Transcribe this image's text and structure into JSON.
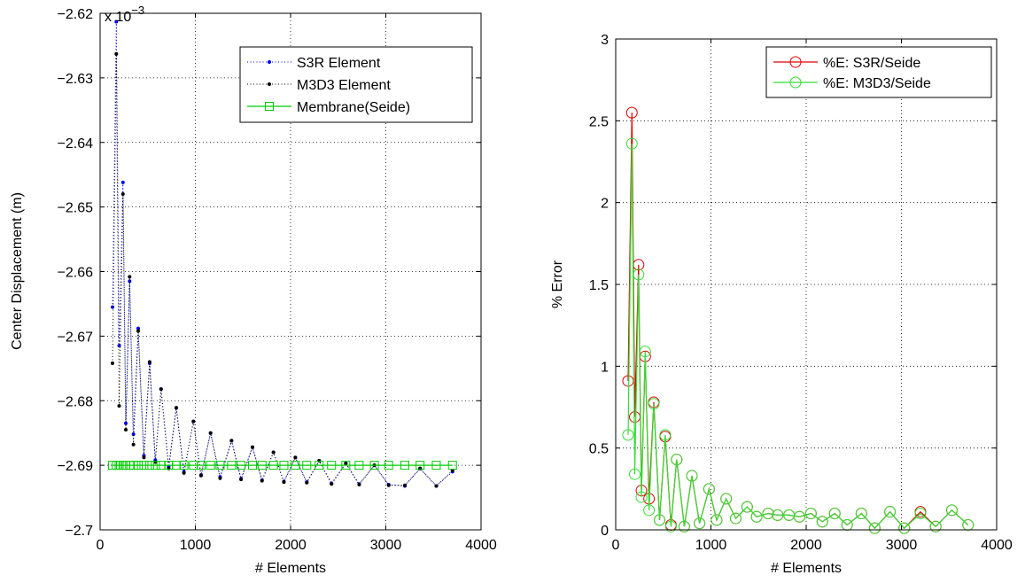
{
  "chart_data": [
    {
      "type": "line",
      "title": "",
      "xlabel": "# Elements",
      "ylabel": "Center Displacement (m)",
      "yexponent": "x 10",
      "yexponent_power": "−3",
      "xlim": [
        0,
        4000
      ],
      "ylim": [
        -2.7,
        -2.62
      ],
      "xticks": [
        0,
        1000,
        2000,
        3000,
        4000
      ],
      "xtick_labels": [
        "0",
        "1000",
        "2000",
        "3000",
        "4000"
      ],
      "yticks": [
        -2.7,
        -2.69,
        -2.68,
        -2.67,
        -2.66,
        -2.65,
        -2.64,
        -2.63,
        -2.62
      ],
      "ytick_labels": [
        "−2.7",
        "−2.69",
        "−2.68",
        "−2.67",
        "−2.66",
        "−2.65",
        "−2.64",
        "−2.63",
        "−2.62"
      ],
      "grid": true,
      "legend_position": "top-right",
      "series": [
        {
          "name": "S3R Element",
          "color": "#0000ff",
          "style": "dotted-point",
          "x": [
            130,
            170,
            200,
            240,
            270,
            310,
            350,
            400,
            460,
            520,
            580,
            640,
            720,
            800,
            880,
            980,
            1060,
            1160,
            1260,
            1380,
            1480,
            1600,
            1700,
            1820,
            1930,
            2050,
            2170,
            2300,
            2430,
            2580,
            2720,
            2880,
            3030,
            3200,
            3360,
            3530,
            3700
          ],
          "values": [
            -2.6655,
            -2.6213,
            -2.6715,
            -2.6462,
            -2.6835,
            -2.6615,
            -2.6852,
            -2.6688,
            -2.6885,
            -2.6742,
            -2.6892,
            -2.6782,
            -2.6902,
            -2.6811,
            -2.691,
            -2.6832,
            -2.6915,
            -2.685,
            -2.6918,
            -2.6862,
            -2.6921,
            -2.6872,
            -2.6923,
            -2.688,
            -2.6925,
            -2.6888,
            -2.6926,
            -2.6893,
            -2.6928,
            -2.6897,
            -2.6929,
            -2.69,
            -2.693,
            -2.6932,
            -2.6905,
            -2.6932,
            -2.691
          ]
        },
        {
          "name": "M3D3 Element",
          "color": "#000000",
          "style": "dotted-point",
          "x": [
            130,
            170,
            200,
            240,
            270,
            310,
            350,
            400,
            460,
            520,
            580,
            640,
            720,
            800,
            880,
            980,
            1060,
            1160,
            1260,
            1380,
            1480,
            1600,
            1700,
            1820,
            1930,
            2050,
            2170,
            2300,
            2430,
            2580,
            2720,
            2880,
            3030,
            3200,
            3360,
            3530,
            3700
          ],
          "values": [
            -2.6742,
            -2.6263,
            -2.6808,
            -2.648,
            -2.6845,
            -2.6608,
            -2.6868,
            -2.6692,
            -2.6888,
            -2.674,
            -2.6895,
            -2.6782,
            -2.6905,
            -2.6811,
            -2.6912,
            -2.6832,
            -2.6916,
            -2.685,
            -2.692,
            -2.6862,
            -2.6922,
            -2.6872,
            -2.6924,
            -2.688,
            -2.6926,
            -2.6888,
            -2.6927,
            -2.6893,
            -2.6929,
            -2.6897,
            -2.693,
            -2.69,
            -2.6931,
            -2.6931,
            -2.6905,
            -2.6932,
            -2.6908
          ]
        },
        {
          "name": "Membrane(Seide)",
          "color": "#00cc00",
          "style": "line-square",
          "x": [
            130,
            170,
            200,
            240,
            270,
            310,
            350,
            400,
            460,
            520,
            580,
            640,
            720,
            800,
            880,
            980,
            1060,
            1160,
            1260,
            1380,
            1480,
            1600,
            1700,
            1820,
            1930,
            2050,
            2170,
            2300,
            2430,
            2580,
            2720,
            2880,
            3030,
            3200,
            3360,
            3530,
            3700
          ],
          "values": [
            -2.69,
            -2.69,
            -2.69,
            -2.69,
            -2.69,
            -2.69,
            -2.69,
            -2.69,
            -2.69,
            -2.69,
            -2.69,
            -2.69,
            -2.69,
            -2.69,
            -2.69,
            -2.69,
            -2.69,
            -2.69,
            -2.69,
            -2.69,
            -2.69,
            -2.69,
            -2.69,
            -2.69,
            -2.69,
            -2.69,
            -2.69,
            -2.69,
            -2.69,
            -2.69,
            -2.69,
            -2.69,
            -2.69,
            -2.69,
            -2.69,
            -2.69,
            -2.69
          ]
        }
      ]
    },
    {
      "type": "line",
      "title": "",
      "xlabel": "# Elements",
      "ylabel": "% Error",
      "xlim": [
        0,
        4000
      ],
      "ylim": [
        0,
        3
      ],
      "xticks": [
        0,
        1000,
        2000,
        3000,
        4000
      ],
      "xtick_labels": [
        "0",
        "1000",
        "2000",
        "3000",
        "4000"
      ],
      "yticks": [
        0,
        0.5,
        1,
        1.5,
        2,
        2.5,
        3
      ],
      "ytick_labels": [
        "0",
        "0.5",
        "1",
        "1.5",
        "2",
        "2.5",
        "3"
      ],
      "grid": true,
      "legend_position": "top-right",
      "series": [
        {
          "name": "%E: S3R/Seide",
          "color": "#dd0000",
          "style": "line-circle",
          "x": [
            130,
            170,
            200,
            240,
            270,
            310,
            350,
            400,
            460,
            520,
            580,
            640,
            720,
            800,
            880,
            980,
            1060,
            1160,
            1260,
            1380,
            1480,
            1600,
            1700,
            1820,
            1930,
            2050,
            2170,
            2300,
            2430,
            2580,
            2720,
            2880,
            3030,
            3200,
            3360,
            3530,
            3700
          ],
          "values": [
            0.91,
            2.55,
            0.69,
            1.62,
            0.24,
            1.06,
            0.19,
            0.78,
            0.06,
            0.57,
            0.03,
            0.43,
            0.02,
            0.33,
            0.04,
            0.25,
            0.06,
            0.19,
            0.07,
            0.14,
            0.08,
            0.1,
            0.09,
            0.09,
            0.08,
            0.1,
            0.05,
            0.1,
            0.03,
            0.1,
            0.01,
            0.11,
            0.01,
            0.11,
            0.02,
            0.12,
            0.03
          ]
        },
        {
          "name": "%E: M3D3/Seide",
          "color": "#33dd33",
          "style": "line-circle",
          "x": [
            130,
            170,
            200,
            240,
            270,
            310,
            350,
            400,
            460,
            520,
            580,
            640,
            720,
            800,
            880,
            980,
            1060,
            1160,
            1260,
            1380,
            1480,
            1600,
            1700,
            1820,
            1930,
            2050,
            2170,
            2300,
            2430,
            2580,
            2720,
            2880,
            3030,
            3200,
            3360,
            3530,
            3700
          ],
          "values": [
            0.58,
            2.36,
            0.34,
            1.56,
            0.2,
            1.09,
            0.12,
            0.77,
            0.06,
            0.58,
            0.02,
            0.43,
            0.02,
            0.33,
            0.04,
            0.25,
            0.06,
            0.19,
            0.07,
            0.14,
            0.08,
            0.1,
            0.09,
            0.09,
            0.08,
            0.1,
            0.05,
            0.1,
            0.03,
            0.1,
            0.01,
            0.11,
            0.01,
            0.1,
            0.02,
            0.12,
            0.03
          ]
        }
      ]
    }
  ]
}
